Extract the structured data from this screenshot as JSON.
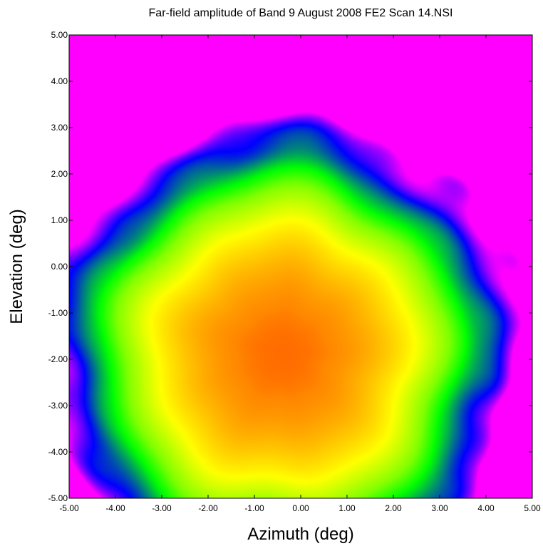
{
  "chart_data": {
    "type": "heatmap",
    "title": "Far-field amplitude of Band 9 August 2008 FE2 Scan 14.NSI",
    "xlabel": "Azimuth (deg)",
    "ylabel": "Elevation (deg)",
    "xlim": [
      -5.0,
      5.0
    ],
    "ylim": [
      -5.0,
      5.0
    ],
    "x_ticks": [
      "-5.00",
      "-4.00",
      "-3.00",
      "-2.00",
      "-1.00",
      "0.00",
      "1.00",
      "2.00",
      "3.00",
      "4.00",
      "5.00"
    ],
    "y_ticks": [
      "5.00",
      "4.00",
      "3.00",
      "2.00",
      "1.00",
      "0.00",
      "-1.00",
      "-2.00",
      "-3.00",
      "-4.00",
      "-5.00"
    ],
    "grid": false,
    "colormap": [
      "#ff0000",
      "#ff8800",
      "#ffff00",
      "#00ff00",
      "#0000ff",
      "#ff00ff"
    ],
    "beam_center_deg": [
      -0.4,
      -1.9
    ],
    "beam_half_width_deg": 4.1
  }
}
